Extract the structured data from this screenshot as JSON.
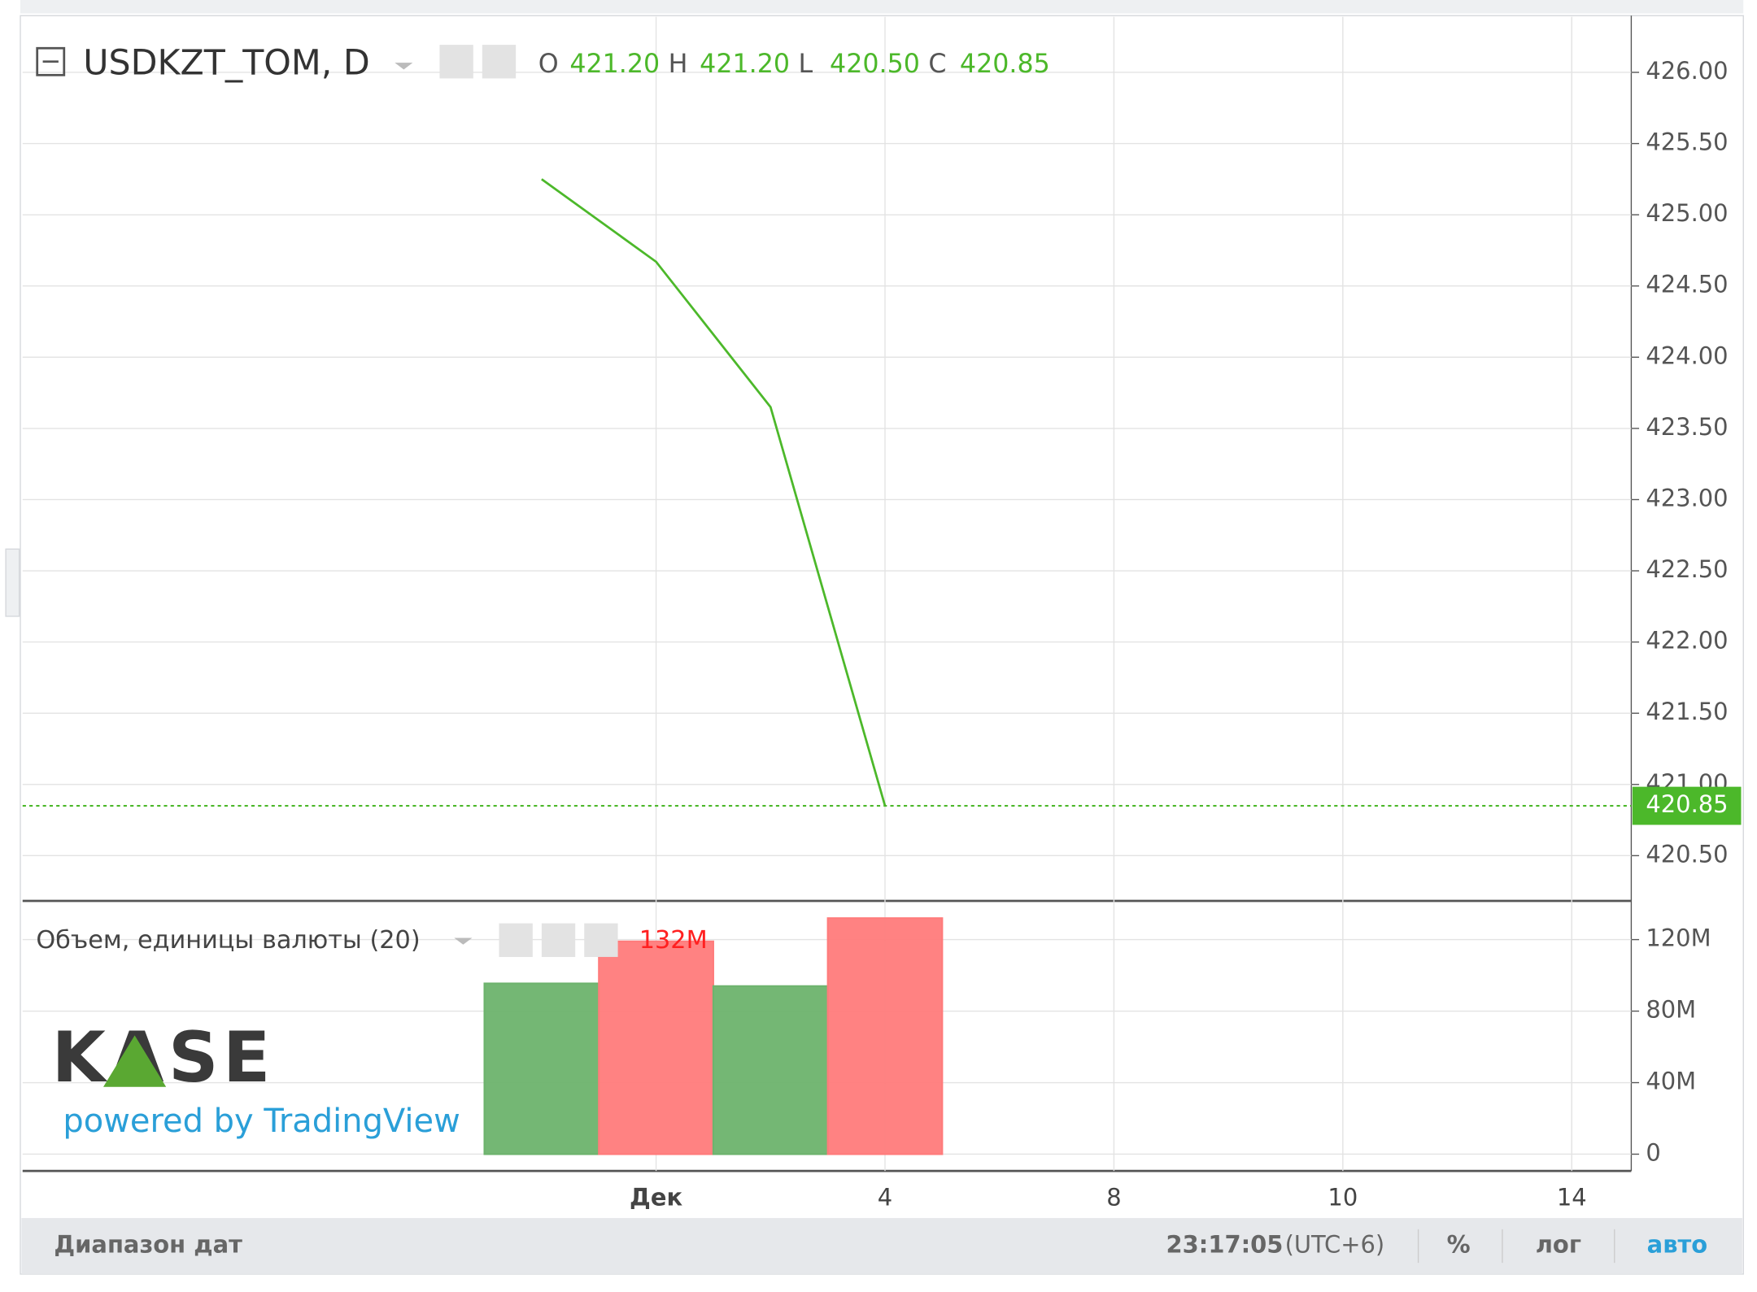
{
  "chart_data": [
    {
      "type": "line",
      "title": "USDKZT_TOM, D",
      "ohlc": [
        {
          "key": "O",
          "value": "421.20"
        },
        {
          "key": "H",
          "value": "421.20"
        },
        {
          "key": "L",
          "value": "420.50"
        },
        {
          "key": "C",
          "value": "420.85"
        }
      ],
      "categories": [
        null,
        "Дек",
        null,
        "4",
        null,
        "8",
        null,
        "10",
        null,
        "14"
      ],
      "values": [
        425.25,
        424.67,
        423.65,
        420.85,
        null,
        null,
        null,
        null,
        null,
        null
      ],
      "color": "#4cb82a",
      "last_price": 420.85,
      "ylim": [
        420.19,
        426.39
      ],
      "yticks": [
        {
          "value": 420.5,
          "label": "420.50"
        },
        {
          "value": 421,
          "label": "421.00"
        },
        {
          "value": 421.5,
          "label": "421.50"
        },
        {
          "value": 422,
          "label": "422.00"
        },
        {
          "value": 422.5,
          "label": "422.50"
        },
        {
          "value": 423,
          "label": "423.00"
        },
        {
          "value": 423.5,
          "label": "423.50"
        },
        {
          "value": 424,
          "label": "424.00"
        },
        {
          "value": 424.5,
          "label": "424.50"
        },
        {
          "value": 425,
          "label": "425.00"
        },
        {
          "value": 425.5,
          "label": "425.50"
        },
        {
          "value": 426,
          "label": "426.00"
        }
      ],
      "grid": true
    },
    {
      "type": "bar",
      "title": "Объем, единицы валюты (20)",
      "legend_value": "132M",
      "values": [
        95.5,
        119,
        94,
        132,
        null,
        null,
        null,
        null,
        null,
        null
      ],
      "colors": [
        "#6db36d",
        "#ff7b7b",
        "#6db36d",
        "#ff7b7b",
        null,
        null,
        null,
        null,
        null,
        null
      ],
      "ylim": [
        0,
        141
      ],
      "yticks": [
        0,
        {
          "value": 40,
          "label": "40M"
        },
        {
          "value": 80,
          "label": "80M"
        },
        {
          "value": 120,
          "label": "120M"
        }
      ],
      "grid": true
    }
  ],
  "branding": {
    "logo": "KASE",
    "powered": "powered by TradingView"
  },
  "toolbar": {
    "range": "Диапазон дат",
    "time": "23:17:05",
    "zone": "(UTC+6)",
    "percent": "%",
    "log": "лог",
    "auto": "авто"
  }
}
